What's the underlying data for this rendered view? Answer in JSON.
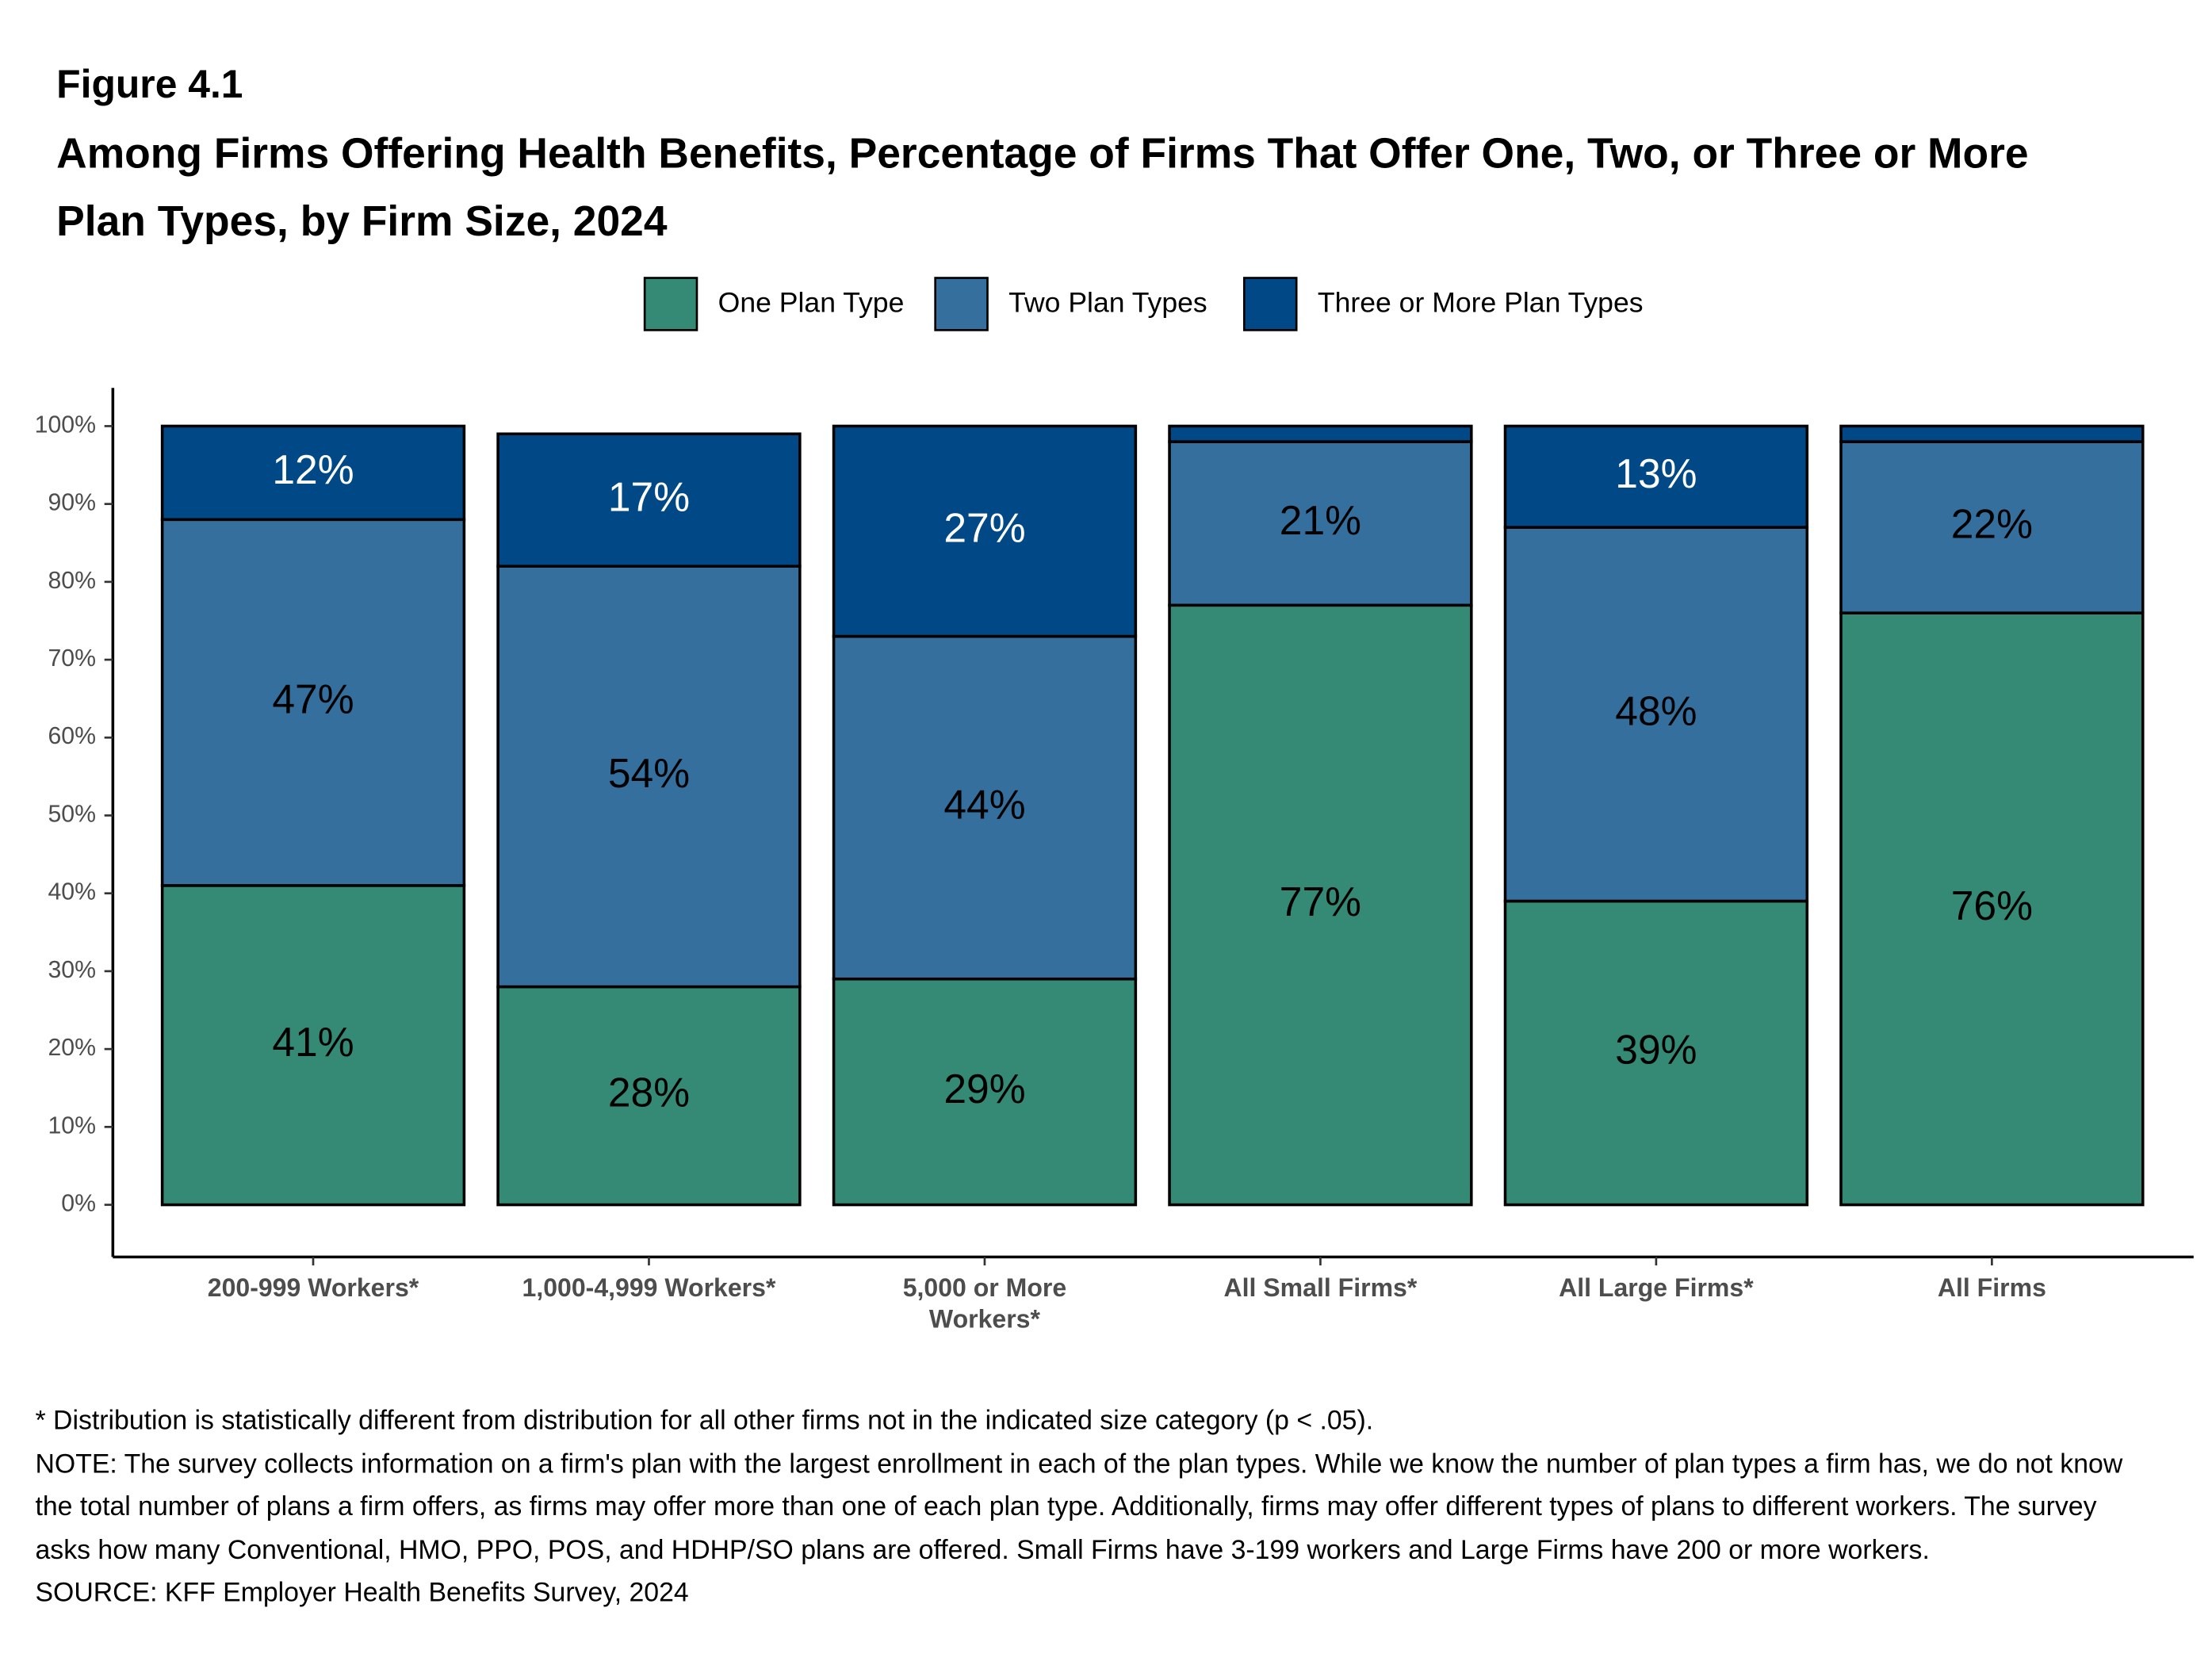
{
  "chart_data": {
    "type": "stacked_bar",
    "figure_label": "Figure 4.1",
    "title": "Among Firms Offering Health Benefits, Percentage of Firms That Offer One, Two, or Three or More Plan Types, by Firm Size, 2024",
    "categories": [
      "200-999 Workers*",
      "1,000-4,999 Workers*",
      "5,000 or More Workers*",
      "All Small Firms*",
      "All Large Firms*",
      "All Firms"
    ],
    "series": [
      {
        "name": "One Plan Type",
        "color": "#358a75",
        "label_color": "#000000",
        "values": [
          41,
          28,
          29,
          77,
          39,
          76
        ],
        "value_labels": [
          "41%",
          "28%",
          "29%",
          "77%",
          "39%",
          "76%"
        ]
      },
      {
        "name": "Two Plan Types",
        "color": "#356f9e",
        "label_color": "#000000",
        "values": [
          47,
          54,
          44,
          21,
          48,
          22
        ],
        "value_labels": [
          "47%",
          "54%",
          "44%",
          "21%",
          "48%",
          "22%"
        ]
      },
      {
        "name": "Three or More Plan Types",
        "color": "#004886",
        "label_color": "#ffffff",
        "values": [
          12,
          17,
          27,
          2,
          13,
          2
        ],
        "value_labels": [
          "12%",
          "17%",
          "27%",
          null,
          "13%",
          null
        ]
      }
    ],
    "ylim": [
      -6.7,
      104.9
    ],
    "yticks": [
      {
        "value": 0,
        "label": "0%"
      },
      {
        "value": 10,
        "label": "10%"
      },
      {
        "value": 20,
        "label": "20%"
      },
      {
        "value": 30,
        "label": "30%"
      },
      {
        "value": 40,
        "label": "40%"
      },
      {
        "value": 50,
        "label": "50%"
      },
      {
        "value": 60,
        "label": "60%"
      },
      {
        "value": 70,
        "label": "70%"
      },
      {
        "value": 80,
        "label": "80%"
      },
      {
        "value": 90,
        "label": "90%"
      },
      {
        "value": 100,
        "label": "100%"
      }
    ],
    "grid": false,
    "legend_position": "top",
    "notes": [
      "* Distribution is statistically different from distribution for all other firms not in the indicated size category (p < .05).",
      "NOTE: The survey collects information on a firm's plan with the largest enrollment in each of the plan types. While we know the number of plan types a firm has, we do not know the total number of plans a firm offers, as firms may offer more than one of each plan type. Additionally, firms may offer different types of plans to different workers. The survey asks how many Conventional, HMO, PPO, POS, and HDHP/SO plans are offered. Small Firms have 3-199 workers and Large Firms have 200 or more workers.",
      "SOURCE: KFF Employer Health Benefits Survey, 2024"
    ]
  }
}
